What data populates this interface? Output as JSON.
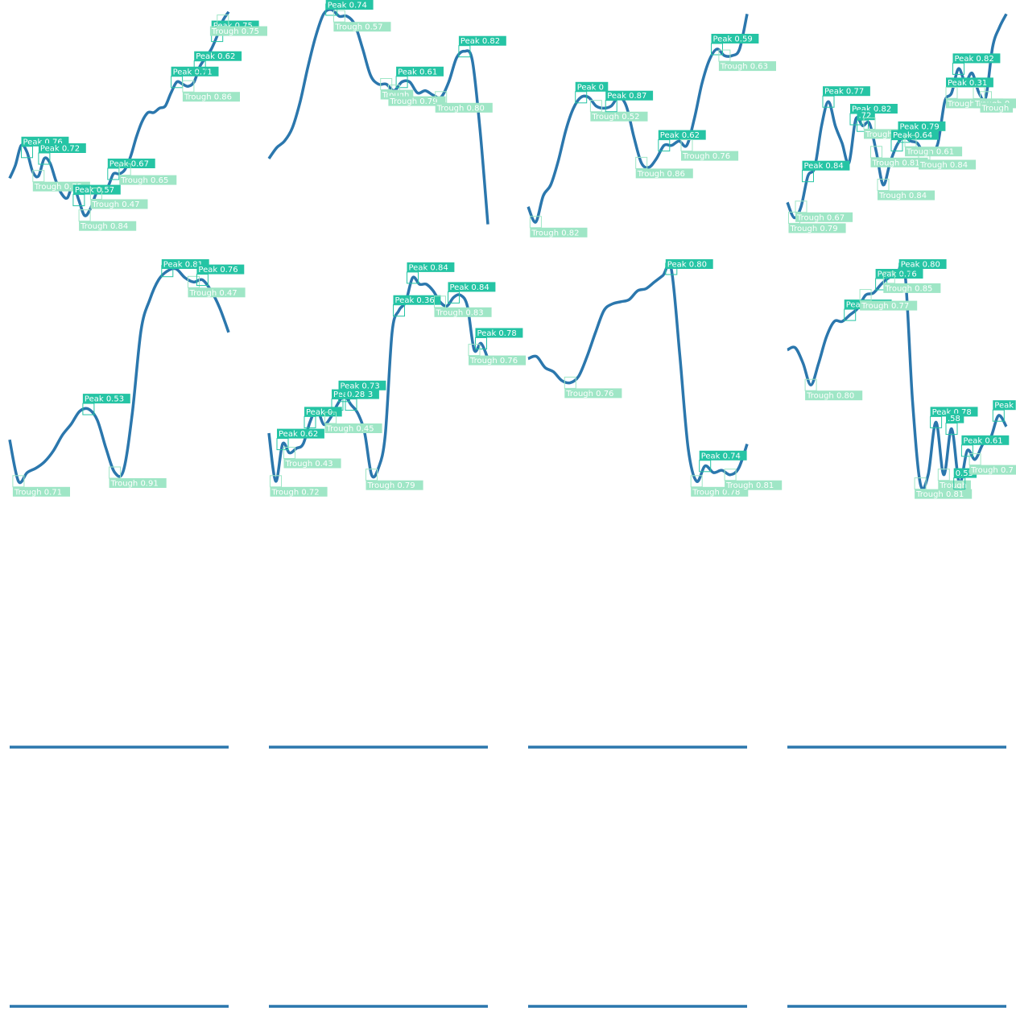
{
  "colors": {
    "line": "#2b77ad",
    "peak": "#25c4a4",
    "trough": "#9fe6c6",
    "background": "#ffffff"
  },
  "chart_data": [
    {
      "type": "line",
      "ylim": [
        0,
        1
      ],
      "values": [
        0.23,
        0.29,
        0.38,
        0.35,
        0.26,
        0.24,
        0.32,
        0.3,
        0.22,
        0.16,
        0.14,
        0.2,
        0.13,
        0.06,
        0.09,
        0.16,
        0.19,
        0.19,
        0.25,
        0.25,
        0.27,
        0.33,
        0.42,
        0.49,
        0.53,
        0.53,
        0.55,
        0.56,
        0.62,
        0.67,
        0.66,
        0.65,
        0.67,
        0.74,
        0.78,
        0.82,
        0.88,
        0.95,
        0.99
      ],
      "annotations": [
        {
          "label": "Peak 0.76",
          "i": 3
        },
        {
          "label": "Peak 0.72",
          "i": 6
        },
        {
          "label": "Trough 0.75",
          "i": 5
        },
        {
          "label": "Trough 0.84",
          "i": 13
        },
        {
          "label": "Peak 0.57",
          "i": 12
        },
        {
          "label": "Trough 0.47",
          "i": 15
        },
        {
          "label": "Peak 0.67",
          "i": 18
        },
        {
          "label": "Trough 0.65",
          "i": 20
        },
        {
          "label": "Peak 0.71",
          "i": 29
        },
        {
          "label": "Trough 0.86",
          "i": 31
        },
        {
          "label": "Peak 0.62",
          "i": 33
        },
        {
          "label": "Peak 0.75",
          "i": 36
        },
        {
          "label": "Trough 0.75",
          "i": 37
        }
      ]
    },
    {
      "type": "line",
      "ylim": [
        0,
        1
      ],
      "values": [
        0.32,
        0.37,
        0.4,
        0.46,
        0.58,
        0.74,
        0.88,
        0.98,
        1.0,
        0.97,
        0.97,
        0.93,
        0.82,
        0.7,
        0.66,
        0.66,
        0.63,
        0.67,
        0.67,
        0.62,
        0.63,
        0.61,
        0.6,
        0.67,
        0.78,
        0.81,
        0.77,
        0.45,
        0.02
      ],
      "annotations": [
        {
          "label": "Peak 0.74",
          "i": 8
        },
        {
          "label": "Trough 0.57",
          "i": 9
        },
        {
          "label": "Trough",
          "i": 15
        },
        {
          "label": "Peak 0.61",
          "i": 17
        },
        {
          "label": "Trough 0.79",
          "i": 16
        },
        {
          "label": "Trough 0.80",
          "i": 22
        },
        {
          "label": "Peak 0.82",
          "i": 25
        }
      ]
    },
    {
      "type": "line",
      "ylim": [
        0,
        1
      ],
      "values": [
        0.1,
        0.03,
        0.15,
        0.2,
        0.31,
        0.45,
        0.55,
        0.6,
        0.6,
        0.56,
        0.55,
        0.56,
        0.6,
        0.56,
        0.42,
        0.3,
        0.28,
        0.32,
        0.38,
        0.38,
        0.4,
        0.38,
        0.5,
        0.66,
        0.77,
        0.82,
        0.79,
        0.79,
        0.82,
        0.98
      ],
      "annotations": [
        {
          "label": "Trough 0.82",
          "i": 1
        },
        {
          "label": "Peak 0",
          "i": 7
        },
        {
          "label": "Trough 0.52",
          "i": 9
        },
        {
          "label": "Peak 0.87",
          "i": 11
        },
        {
          "label": "Trough 0.86",
          "i": 15
        },
        {
          "label": "Peak 0.62",
          "i": 18
        },
        {
          "label": "Trough 0.76",
          "i": 21
        },
        {
          "label": "Peak 0.59",
          "i": 25
        },
        {
          "label": "Trough 0.63",
          "i": 26
        }
      ]
    },
    {
      "type": "line",
      "ylim": [
        0,
        1
      ],
      "values": [
        0.12,
        0.05,
        0.1,
        0.24,
        0.28,
        0.47,
        0.58,
        0.47,
        0.39,
        0.3,
        0.5,
        0.47,
        0.48,
        0.35,
        0.2,
        0.3,
        0.38,
        0.42,
        0.4,
        0.39,
        0.34,
        0.35,
        0.39,
        0.58,
        0.62,
        0.73,
        0.67,
        0.71,
        0.62,
        0.6,
        0.83,
        0.92,
        0.98
      ],
      "annotations": [
        {
          "label": "Trough 0.79",
          "i": 1
        },
        {
          "label": "Peak 0.84",
          "i": 3
        },
        {
          "label": "Trough 0.67",
          "i": 2
        },
        {
          "label": "Peak 0.77",
          "i": 6
        },
        {
          "label": "Peak 0.82",
          "i": 10
        },
        {
          "label": ".72",
          "i": 11
        },
        {
          "label": "Trough 0.75",
          "i": 12
        },
        {
          "label": "Trough 0.81",
          "i": 13
        },
        {
          "label": "Trough 0.84",
          "i": 14
        },
        {
          "label": "Peak 0.79",
          "i": 17
        },
        {
          "label": "Peak 0.64",
          "i": 16
        },
        {
          "label": "Trough 0.61",
          "i": 18
        },
        {
          "label": "Trough 0.84",
          "i": 20
        },
        {
          "label": "Peak 0.31",
          "i": 24
        },
        {
          "label": "Trough 0.68",
          "i": 24
        },
        {
          "label": "Peak 0.82",
          "i": 25
        },
        {
          "label": "Trough 0.",
          "i": 28
        },
        {
          "label": "Trough",
          "i": 29
        }
      ]
    },
    {
      "type": "line",
      "ylim": [
        0,
        1
      ],
      "values": [
        0.22,
        0.03,
        0.07,
        0.09,
        0.12,
        0.17,
        0.24,
        0.29,
        0.35,
        0.36,
        0.31,
        0.18,
        0.07,
        0.08,
        0.34,
        0.72,
        0.86,
        0.95,
        0.99,
        1.0,
        0.96,
        0.94,
        0.95,
        0.9,
        0.82,
        0.71
      ],
      "annotations": [
        {
          "label": "Trough 0.71",
          "i": 1
        },
        {
          "label": "Peak 0.53",
          "i": 9
        },
        {
          "label": "Trough 0.91",
          "i": 12
        },
        {
          "label": "Peak 0.81",
          "i": 18
        },
        {
          "label": "Trough 0.47",
          "i": 21
        },
        {
          "label": "Peak 0.76",
          "i": 22
        }
      ]
    },
    {
      "type": "line",
      "ylim": [
        0,
        1
      ],
      "values": [
        0.25,
        0.03,
        0.2,
        0.16,
        0.18,
        0.2,
        0.3,
        0.36,
        0.29,
        0.32,
        0.38,
        0.42,
        0.38,
        0.34,
        0.25,
        0.06,
        0.09,
        0.24,
        0.71,
        0.81,
        0.85,
        0.96,
        0.93,
        0.93,
        0.9,
        0.85,
        0.83,
        0.87,
        0.88,
        0.83,
        0.63,
        0.66,
        0.59
      ],
      "annotations": [
        {
          "label": "Peak 0.62",
          "i": 2
        },
        {
          "label": "Trough 0.72",
          "i": 1
        },
        {
          "label": "Trough 0.43",
          "i": 3
        },
        {
          "label": "Peak 0.",
          "i": 6
        },
        {
          "label": "Peak 0.33",
          "i": 10
        },
        {
          "label": "Trough 0.45",
          "i": 9
        },
        {
          "label": "0.28",
          "i": 12
        },
        {
          "label": "Peak 0.73",
          "i": 11
        },
        {
          "label": "Trough 0.79",
          "i": 15
        },
        {
          "label": "Peak 0.36",
          "i": 19
        },
        {
          "label": "Peak 0.84",
          "i": 21
        },
        {
          "label": "Peak 0.84",
          "i": 27
        },
        {
          "label": "Trough 0.83",
          "i": 25
        },
        {
          "label": "Peak 0.78",
          "i": 31
        },
        {
          "label": "Trough 0.76",
          "i": 30
        }
      ]
    },
    {
      "type": "line",
      "ylim": [
        0,
        1
      ],
      "values": [
        0.59,
        0.6,
        0.55,
        0.53,
        0.49,
        0.48,
        0.51,
        0.6,
        0.71,
        0.81,
        0.84,
        0.85,
        0.86,
        0.9,
        0.91,
        0.94,
        0.97,
        1.0,
        0.61,
        0.18,
        0.03,
        0.1,
        0.07,
        0.08,
        0.06,
        0.09,
        0.2
      ],
      "annotations": [
        {
          "label": "Trough 0.76",
          "i": 5
        },
        {
          "label": "Peak 0.80",
          "i": 17
        },
        {
          "label": "Trough 0.78",
          "i": 20
        },
        {
          "label": "Peak 0.74",
          "i": 21
        },
        {
          "label": "Trough 0.81",
          "i": 24
        }
      ]
    },
    {
      "type": "line",
      "ylim": [
        0,
        1
      ],
      "values": [
        0.63,
        0.64,
        0.57,
        0.47,
        0.57,
        0.69,
        0.76,
        0.76,
        0.79,
        0.82,
        0.88,
        0.89,
        0.93,
        0.96,
        0.97,
        1.0,
        0.4,
        0.02,
        0.06,
        0.3,
        0.06,
        0.27,
        0.02,
        0.17,
        0.13,
        0.2,
        0.23,
        0.33,
        0.28
      ],
      "annotations": [
        {
          "label": "Trough 0.80",
          "i": 3
        },
        {
          "label": "Peak 0.76",
          "i": 8
        },
        {
          "label": "Trough 0.77",
          "i": 10
        },
        {
          "label": "Peak 0.76",
          "i": 12
        },
        {
          "label": "Trough 0.85",
          "i": 13
        },
        {
          "label": "Peak 0.80",
          "i": 15
        },
        {
          "label": "Trough 0.81",
          "i": 17
        },
        {
          "label": "Peak 0.78",
          "i": 19
        },
        {
          "label": ".58",
          "i": 21
        },
        {
          "label": "Trough",
          "i": 20
        },
        {
          "label": "0.55",
          "i": 22
        },
        {
          "label": "Peak 0.61",
          "i": 23
        },
        {
          "label": "Trough 0.7",
          "i": 24
        },
        {
          "label": "Peak",
          "i": 27
        }
      ]
    },
    {
      "type": "line",
      "ylim": [
        0,
        1
      ],
      "values": [
        0.0,
        0.0
      ],
      "annotations": []
    },
    {
      "type": "line",
      "ylim": [
        0,
        1
      ],
      "values": [
        0.0,
        0.0
      ],
      "annotations": []
    },
    {
      "type": "line",
      "ylim": [
        0,
        1
      ],
      "values": [
        0.0,
        0.0
      ],
      "annotations": []
    },
    {
      "type": "line",
      "ylim": [
        0,
        1
      ],
      "values": [
        0.0,
        0.0
      ],
      "annotations": []
    },
    {
      "type": "line",
      "ylim": [
        0,
        1
      ],
      "values": [
        0.0,
        0.0
      ],
      "annotations": []
    },
    {
      "type": "line",
      "ylim": [
        0,
        1
      ],
      "values": [
        0.0,
        0.0
      ],
      "annotations": []
    },
    {
      "type": "line",
      "ylim": [
        0,
        1
      ],
      "values": [
        0.0,
        0.0
      ],
      "annotations": []
    },
    {
      "type": "line",
      "ylim": [
        0,
        1
      ],
      "values": [
        0.0,
        0.0
      ],
      "annotations": []
    }
  ]
}
